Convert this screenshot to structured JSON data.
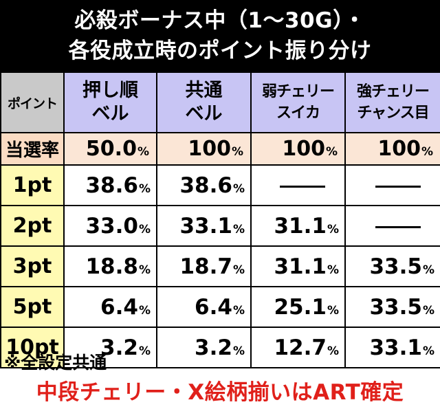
{
  "title": {
    "line1": "必殺ボーナス中（1〜30G）・",
    "line2": "各役成立時のポイント振り分け"
  },
  "table": {
    "point_header": "ポイント",
    "columns": [
      {
        "line1": "押し順",
        "line2": "ベル"
      },
      {
        "line1": "共通",
        "line2": "ベル"
      },
      {
        "line1": "弱チェリー",
        "line2": "スイカ"
      },
      {
        "line1": "強チェリー",
        "line2": "チャンス目"
      }
    ],
    "rate_row": {
      "label": "当選率",
      "values": [
        "50.0",
        "100",
        "100",
        "100"
      ]
    },
    "rows": [
      {
        "label": "1pt",
        "values": [
          "38.6",
          "38.6",
          "",
          ""
        ]
      },
      {
        "label": "2pt",
        "values": [
          "33.0",
          "33.1",
          "31.1",
          ""
        ]
      },
      {
        "label": "3pt",
        "values": [
          "18.8",
          "18.7",
          "31.1",
          "33.5"
        ]
      },
      {
        "label": "5pt",
        "values": [
          "6.4",
          "6.4",
          "25.1",
          "33.5"
        ]
      },
      {
        "label": "10pt",
        "values": [
          "3.2",
          "3.2",
          "12.7",
          "33.1"
        ]
      }
    ],
    "percent_sign": "%"
  },
  "notes": {
    "common": "※全設定共通",
    "art": "中段チェリー・X絵柄揃いはART確定"
  },
  "colors": {
    "title_bg": "#000000",
    "header_bg": "#c8c5f4",
    "point_header_bg": "#c9c9c9",
    "rate_label_bg": "#fbdcc3",
    "rate_bg": "#fbe6d6",
    "row_label_bg": "#fffab3",
    "red_text": "#e0201a"
  }
}
